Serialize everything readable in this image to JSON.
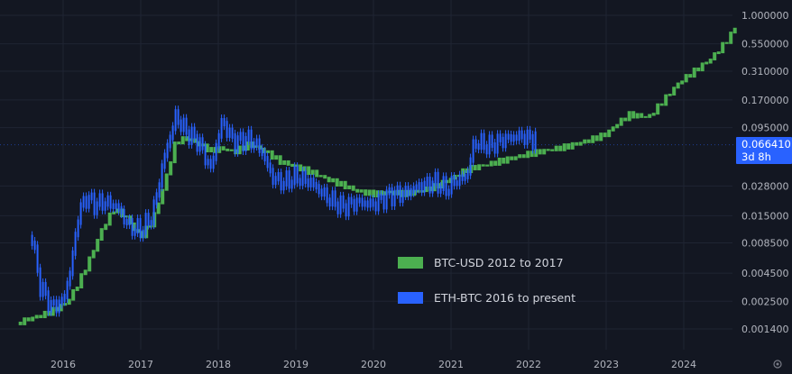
{
  "chart_data": {
    "type": "line",
    "title": "",
    "xlabel": "",
    "ylabel": "",
    "y_scale": "log",
    "grid": true,
    "legend_position": "center-right",
    "x_ticks": [
      "2016",
      "2017",
      "2018",
      "2019",
      "2020",
      "2021",
      "2022",
      "2023",
      "2024"
    ],
    "y_ticks": [
      {
        "label": "1.000000",
        "value": 1.0
      },
      {
        "label": "0.550000",
        "value": 0.55
      },
      {
        "label": "0.310000",
        "value": 0.31
      },
      {
        "label": "0.170000",
        "value": 0.17
      },
      {
        "label": "0.095000",
        "value": 0.095
      },
      {
        "label": "0.028000",
        "value": 0.028
      },
      {
        "label": "0.015000",
        "value": 0.015
      },
      {
        "label": "0.008500",
        "value": 0.0085
      },
      {
        "label": "0.004500",
        "value": 0.0045
      },
      {
        "label": "0.002500",
        "value": 0.0025
      },
      {
        "label": "0.001400",
        "value": 0.0014
      }
    ],
    "ylim": [
      0.00095,
      1.25
    ],
    "current_price": {
      "value_label": "0.066410",
      "countdown": "3d 8h",
      "value": 0.06641
    },
    "series": [
      {
        "name": "BTC-USD 2012 to 2017",
        "color": "#4caf50",
        "points": [
          [
            2015.45,
            0.0016
          ],
          [
            2015.6,
            0.0017
          ],
          [
            2015.75,
            0.0018
          ],
          [
            2015.9,
            0.002
          ],
          [
            2016.05,
            0.0023
          ],
          [
            2016.2,
            0.0035
          ],
          [
            2016.35,
            0.006
          ],
          [
            2016.5,
            0.011
          ],
          [
            2016.65,
            0.017
          ],
          [
            2016.8,
            0.015
          ],
          [
            2016.9,
            0.012
          ],
          [
            2017.0,
            0.01
          ],
          [
            2017.15,
            0.014
          ],
          [
            2017.3,
            0.03
          ],
          [
            2017.45,
            0.075
          ],
          [
            2017.6,
            0.08
          ],
          [
            2017.75,
            0.07
          ],
          [
            2017.9,
            0.06
          ],
          [
            2018.05,
            0.062
          ],
          [
            2018.2,
            0.056
          ],
          [
            2018.4,
            0.065
          ],
          [
            2018.6,
            0.055
          ],
          [
            2018.8,
            0.044
          ],
          [
            2019.0,
            0.04
          ],
          [
            2019.2,
            0.036
          ],
          [
            2019.4,
            0.032
          ],
          [
            2019.6,
            0.029
          ],
          [
            2019.8,
            0.026
          ],
          [
            2020.0,
            0.025
          ],
          [
            2020.2,
            0.026
          ],
          [
            2020.4,
            0.025
          ],
          [
            2020.6,
            0.026
          ],
          [
            2020.8,
            0.028
          ],
          [
            2021.0,
            0.032
          ],
          [
            2021.2,
            0.038
          ],
          [
            2021.5,
            0.042
          ],
          [
            2021.8,
            0.048
          ],
          [
            2022.0,
            0.053
          ],
          [
            2022.2,
            0.058
          ],
          [
            2022.5,
            0.066
          ],
          [
            2022.8,
            0.078
          ],
          [
            2023.0,
            0.088
          ],
          [
            2023.15,
            0.11
          ],
          [
            2023.3,
            0.13
          ],
          [
            2023.55,
            0.12
          ],
          [
            2023.75,
            0.17
          ],
          [
            2023.95,
            0.24
          ],
          [
            2024.15,
            0.3
          ],
          [
            2024.35,
            0.38
          ],
          [
            2024.5,
            0.5
          ],
          [
            2024.6,
            0.62
          ],
          [
            2024.7,
            0.85
          ]
        ]
      },
      {
        "name": "ETH-BTC 2016 to present",
        "color": "#2962ff",
        "points": [
          [
            2015.6,
            0.0095
          ],
          [
            2015.7,
            0.0035
          ],
          [
            2015.85,
            0.0022
          ],
          [
            2016.0,
            0.0025
          ],
          [
            2016.1,
            0.005
          ],
          [
            2016.2,
            0.016
          ],
          [
            2016.3,
            0.022
          ],
          [
            2016.4,
            0.019
          ],
          [
            2016.55,
            0.02
          ],
          [
            2016.7,
            0.018
          ],
          [
            2016.85,
            0.012
          ],
          [
            2017.0,
            0.011
          ],
          [
            2017.15,
            0.015
          ],
          [
            2017.3,
            0.05
          ],
          [
            2017.45,
            0.12
          ],
          [
            2017.6,
            0.085
          ],
          [
            2017.75,
            0.07
          ],
          [
            2017.9,
            0.04
          ],
          [
            2018.05,
            0.11
          ],
          [
            2018.2,
            0.07
          ],
          [
            2018.4,
            0.075
          ],
          [
            2018.55,
            0.06
          ],
          [
            2018.7,
            0.033
          ],
          [
            2018.85,
            0.03
          ],
          [
            2019.0,
            0.034
          ],
          [
            2019.2,
            0.03
          ],
          [
            2019.4,
            0.022
          ],
          [
            2019.6,
            0.018
          ],
          [
            2019.8,
            0.02
          ],
          [
            2020.0,
            0.019
          ],
          [
            2020.2,
            0.023
          ],
          [
            2020.4,
            0.024
          ],
          [
            2020.6,
            0.028
          ],
          [
            2020.8,
            0.03
          ],
          [
            2020.95,
            0.026
          ],
          [
            2021.05,
            0.031
          ],
          [
            2021.2,
            0.034
          ],
          [
            2021.3,
            0.07
          ],
          [
            2021.5,
            0.065
          ],
          [
            2021.7,
            0.075
          ],
          [
            2021.9,
            0.08
          ],
          [
            2022.0,
            0.076
          ],
          [
            2022.1,
            0.074
          ]
        ]
      }
    ]
  }
}
